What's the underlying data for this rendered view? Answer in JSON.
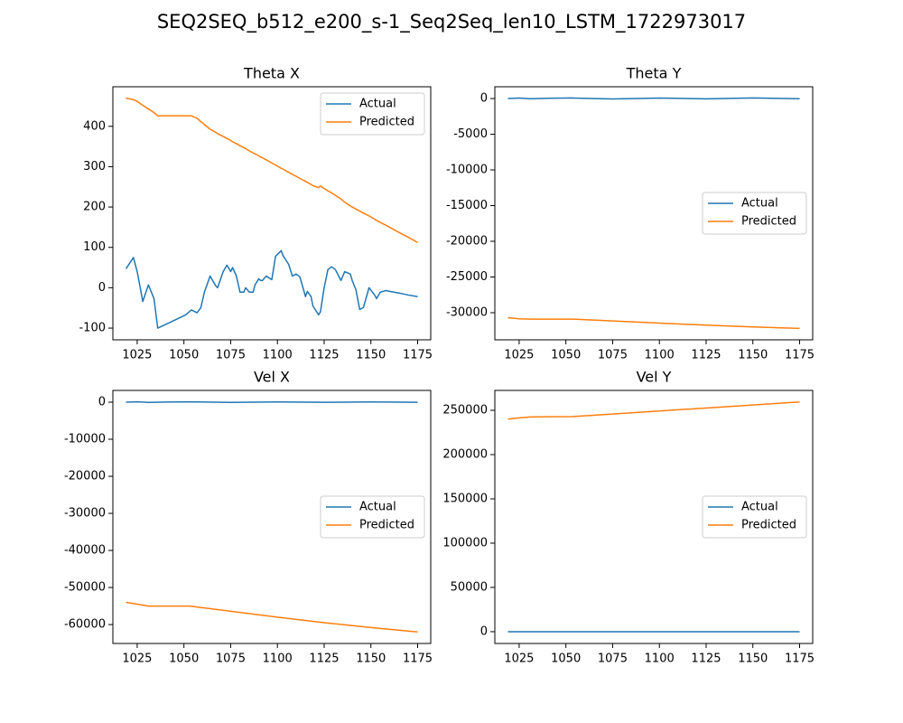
{
  "title": "SEQ2SEQ_b512_e200_s-1_Seq2Seq_len10_LSTM_1722973017",
  "chart_data": [
    {
      "type": "line",
      "title": "Theta X",
      "x": [
        1019,
        1023,
        1025,
        1028,
        1031,
        1034,
        1036,
        1043,
        1051,
        1054,
        1057,
        1059,
        1061,
        1064,
        1067,
        1068,
        1071,
        1073,
        1075,
        1076,
        1078,
        1080,
        1082,
        1083,
        1085,
        1087,
        1088,
        1090,
        1091,
        1092,
        1094,
        1097,
        1099,
        1102,
        1103,
        1106,
        1108,
        1110,
        1112,
        1114,
        1115,
        1116,
        1118,
        1119,
        1122,
        1123,
        1125,
        1127,
        1129,
        1131,
        1134,
        1136,
        1139,
        1140,
        1142,
        1144,
        1146,
        1149,
        1152,
        1153,
        1155,
        1158,
        1160,
        1165,
        1170,
        1175
      ],
      "series": [
        {
          "name": "Actual",
          "color": "#1f77b4",
          "values": [
            47,
            75,
            40,
            -34,
            7,
            -27,
            -100,
            -85,
            -67,
            -55,
            -62,
            -50,
            -10,
            29,
            5,
            0,
            40,
            56,
            40,
            50,
            30,
            -11,
            -11,
            0,
            -11,
            -11,
            7,
            22,
            18,
            18,
            29,
            20,
            78,
            92,
            80,
            58,
            29,
            34,
            27,
            -5,
            -22,
            -9,
            -22,
            -45,
            -67,
            -60,
            0,
            45,
            52,
            45,
            18,
            40,
            34,
            18,
            -5,
            -54,
            -49,
            0,
            -18,
            -27,
            -11,
            -7,
            -9,
            -13,
            -18,
            -22
          ]
        },
        {
          "name": "Predicted",
          "color": "#ff7f0e",
          "values": [
            470,
            466,
            462,
            452,
            443,
            434,
            426,
            426,
            426,
            426,
            420,
            412,
            404,
            393,
            385,
            382,
            375,
            370,
            365,
            362,
            357,
            352,
            347,
            345,
            339,
            334,
            332,
            327,
            324,
            322,
            317,
            309,
            304,
            296,
            294,
            286,
            281,
            276,
            271,
            266,
            264,
            261,
            256,
            253,
            248,
            252,
            246,
            240,
            235,
            229,
            220,
            212,
            203,
            200,
            195,
            190,
            185,
            178,
            170,
            167,
            162,
            155,
            150,
            137,
            125,
            112
          ]
        }
      ],
      "xlim": [
        1012,
        1182
      ],
      "xticks": [
        1025,
        1050,
        1075,
        1100,
        1125,
        1150,
        1175
      ],
      "ylim": [
        -129,
        498
      ],
      "yticks": [
        -100,
        0,
        100,
        200,
        300,
        400
      ],
      "legend": "upper right"
    },
    {
      "type": "line",
      "title": "Theta Y",
      "x": [
        1019,
        1025,
        1031,
        1040,
        1053,
        1075,
        1100,
        1125,
        1150,
        1175
      ],
      "series": [
        {
          "name": "Actual",
          "color": "#1f77b4",
          "values": [
            0,
            60,
            -30,
            40,
            80,
            -60,
            60,
            -40,
            80,
            -20
          ]
        },
        {
          "name": "Predicted",
          "color": "#ff7f0e",
          "values": [
            -30700,
            -30850,
            -30900,
            -30900,
            -30900,
            -31150,
            -31450,
            -31750,
            -32000,
            -32200
          ]
        }
      ],
      "xlim": [
        1012,
        1182
      ],
      "xticks": [
        1025,
        1050,
        1075,
        1100,
        1125,
        1150,
        1175
      ],
      "ylim": [
        -33800,
        1650
      ],
      "yticks": [
        -30000,
        -25000,
        -20000,
        -15000,
        -10000,
        -5000,
        0
      ],
      "legend": "center right"
    },
    {
      "type": "line",
      "title": "Vel X",
      "x": [
        1019,
        1025,
        1031,
        1040,
        1053,
        1075,
        1100,
        1125,
        1150,
        1175
      ],
      "series": [
        {
          "name": "Actual",
          "color": "#1f77b4",
          "values": [
            0,
            80,
            -60,
            40,
            100,
            -50,
            70,
            -40,
            60,
            -20
          ]
        },
        {
          "name": "Predicted",
          "color": "#ff7f0e",
          "values": [
            -54000,
            -54500,
            -55000,
            -55000,
            -55000,
            -56400,
            -58000,
            -59500,
            -60800,
            -62000
          ]
        }
      ],
      "xlim": [
        1012,
        1182
      ],
      "xticks": [
        1025,
        1050,
        1075,
        1100,
        1125,
        1150,
        1175
      ],
      "ylim": [
        -65100,
        3170
      ],
      "yticks": [
        -60000,
        -50000,
        -40000,
        -30000,
        -20000,
        -10000,
        0
      ],
      "legend": "center right"
    },
    {
      "type": "line",
      "title": "Vel Y",
      "x": [
        1019,
        1025,
        1031,
        1040,
        1053,
        1075,
        1100,
        1125,
        1150,
        1175
      ],
      "series": [
        {
          "name": "Actual",
          "color": "#1f77b4",
          "values": [
            0,
            0,
            0,
            0,
            0,
            0,
            0,
            0,
            0,
            0
          ]
        },
        {
          "name": "Predicted",
          "color": "#ff7f0e",
          "values": [
            240000,
            241500,
            242500,
            242700,
            242800,
            245800,
            249200,
            252600,
            256000,
            259500
          ]
        }
      ],
      "xlim": [
        1012,
        1182
      ],
      "xticks": [
        1025,
        1050,
        1075,
        1100,
        1125,
        1150,
        1175
      ],
      "ylim": [
        -13300,
        272450
      ],
      "yticks": [
        0,
        50000,
        100000,
        150000,
        200000,
        250000
      ],
      "legend": "center right"
    }
  ]
}
